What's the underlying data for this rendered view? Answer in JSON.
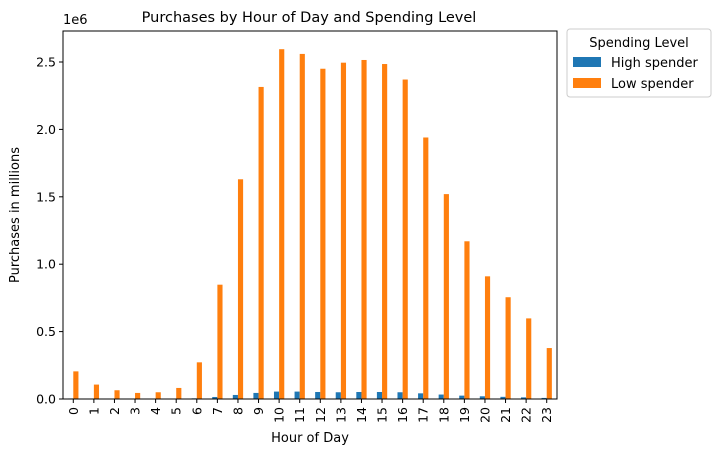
{
  "chart_data": {
    "type": "bar",
    "title": "Purchases by Hour of Day and Spending Level",
    "xlabel": "Hour of Day",
    "ylabel": "Purchases in millions",
    "y_offset_label": "1e6",
    "categories": [
      "0",
      "1",
      "2",
      "3",
      "4",
      "5",
      "6",
      "7",
      "8",
      "9",
      "10",
      "11",
      "12",
      "13",
      "14",
      "15",
      "16",
      "17",
      "18",
      "19",
      "20",
      "21",
      "22",
      "23"
    ],
    "ylim": [
      0,
      2730000
    ],
    "yticks": [
      0,
      500000,
      1000000,
      1500000,
      2000000,
      2500000
    ],
    "ytick_labels": [
      "0.0",
      "0.5",
      "1.0",
      "1.5",
      "2.0",
      "2.5"
    ],
    "grid": false,
    "legend": {
      "title": "Spending Level",
      "placement": "outside top-right"
    },
    "series": [
      {
        "name": "High spender",
        "color": "#1f77b4",
        "values": [
          4000,
          2000,
          1000,
          1000,
          1000,
          1500,
          5000,
          15000,
          30000,
          45000,
          55000,
          55000,
          52000,
          50000,
          52000,
          52000,
          50000,
          42000,
          33000,
          25000,
          20000,
          16000,
          12000,
          8000
        ]
      },
      {
        "name": "Low spender",
        "color": "#ff7f0e",
        "values": [
          205000,
          107000,
          65000,
          45000,
          50000,
          82000,
          272000,
          848000,
          1630000,
          2315000,
          2595000,
          2560000,
          2450000,
          2495000,
          2515000,
          2485000,
          2370000,
          1940000,
          1520000,
          1170000,
          910000,
          755000,
          598000,
          378000
        ]
      }
    ]
  }
}
